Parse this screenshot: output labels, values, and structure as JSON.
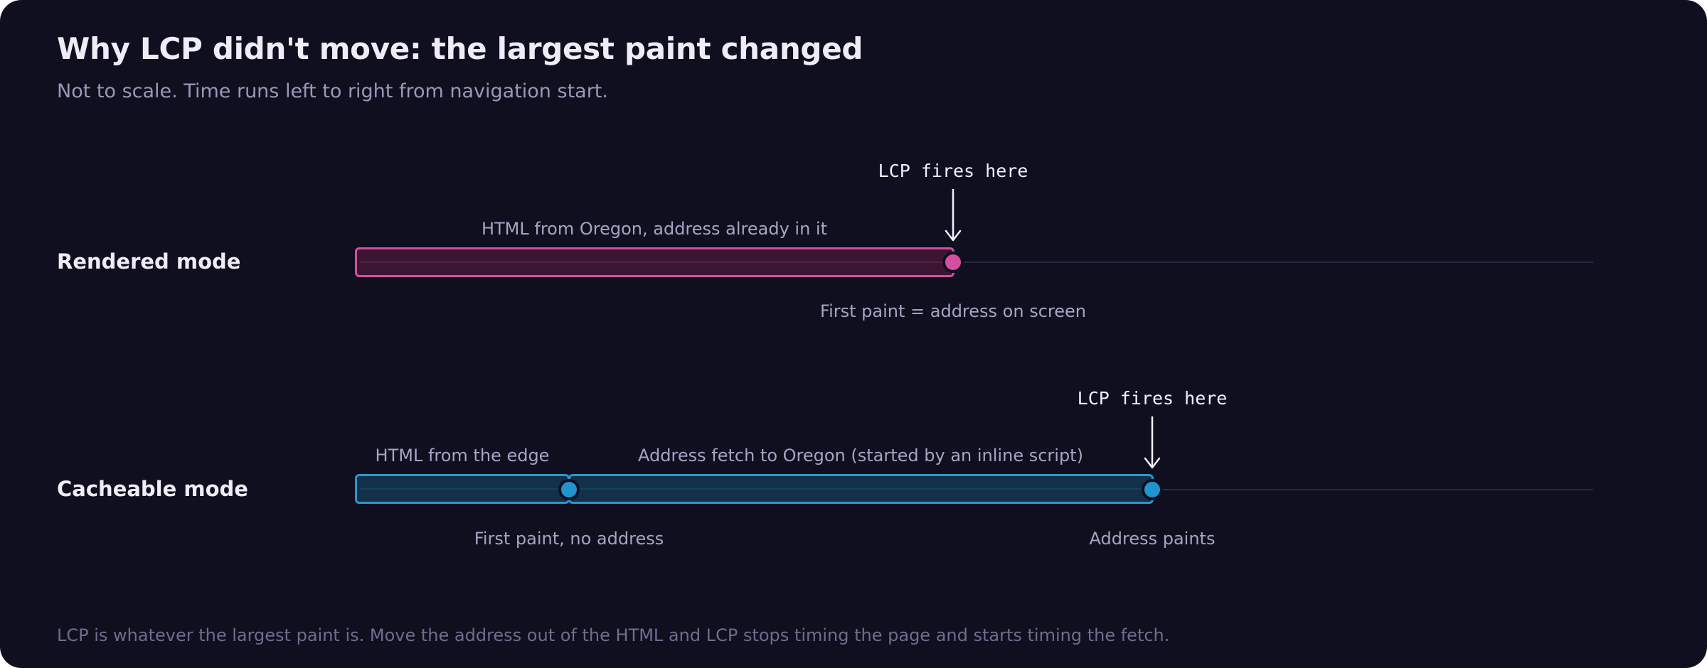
{
  "header": {
    "title": "Why LCP didn't move: the largest paint changed",
    "subtitle": "Not to scale. Time runs left to right from navigation start."
  },
  "lanes": [
    {
      "name": "Rendered mode",
      "color": "#d44ea2",
      "segments": [
        {
          "label": "HTML from Oregon, address already in it"
        }
      ],
      "milestones": [
        {
          "label": "First paint = address on screen"
        }
      ],
      "lcp_label": "LCP fires here"
    },
    {
      "name": "Cacheable mode",
      "color": "#1f95cf",
      "segments": [
        {
          "label": "HTML from the edge"
        },
        {
          "label": "Address fetch to Oregon (started by an inline script)"
        }
      ],
      "milestones": [
        {
          "label": "First paint, no address"
        },
        {
          "label": "Address paints"
        }
      ],
      "lcp_label": "LCP fires here"
    }
  ],
  "footnote": "LCP is whatever the largest paint is. Move the address out of the HTML and LCP stops timing the page and starts timing the fetch.",
  "colors": {
    "background": "#100f20",
    "rendered_accent": "#d44ea2",
    "cacheable_accent": "#1f95cf"
  }
}
